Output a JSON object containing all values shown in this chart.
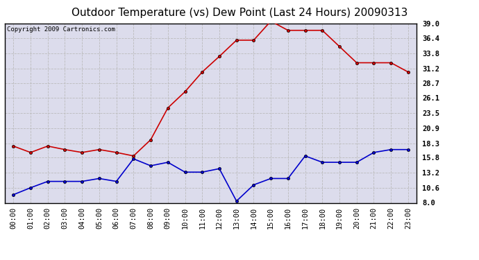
{
  "title": "Outdoor Temperature (vs) Dew Point (Last 24 Hours) 20090313",
  "copyright": "Copyright 2009 Cartronics.com",
  "hours": [
    "00:00",
    "01:00",
    "02:00",
    "03:00",
    "04:00",
    "05:00",
    "06:00",
    "07:00",
    "08:00",
    "09:00",
    "10:00",
    "11:00",
    "12:00",
    "13:00",
    "14:00",
    "15:00",
    "16:00",
    "17:00",
    "18:00",
    "19:00",
    "20:00",
    "21:00",
    "22:00",
    "23:00"
  ],
  "temp_red": [
    17.8,
    16.7,
    17.8,
    17.2,
    16.7,
    17.2,
    16.7,
    16.1,
    18.9,
    24.4,
    27.2,
    30.6,
    33.3,
    36.1,
    36.1,
    39.4,
    37.8,
    37.8,
    37.8,
    35.0,
    32.2,
    32.2,
    32.2,
    30.6
  ],
  "dew_blue": [
    9.4,
    10.6,
    11.7,
    11.7,
    11.7,
    12.2,
    11.7,
    15.6,
    14.4,
    15.0,
    13.3,
    13.3,
    13.9,
    8.3,
    11.1,
    12.2,
    12.2,
    16.1,
    15.0,
    15.0,
    15.0,
    16.7,
    17.2,
    17.2
  ],
  "ylim": [
    8.0,
    39.0
  ],
  "yticks": [
    8.0,
    10.6,
    13.2,
    15.8,
    18.3,
    20.9,
    23.5,
    26.1,
    28.7,
    31.2,
    33.8,
    36.4,
    39.0
  ],
  "line_color_red": "#cc0000",
  "line_color_blue": "#0000cc",
  "bg_color": "#dcdcec",
  "grid_color": "#bbbbbb",
  "title_fontsize": 11,
  "copyright_fontsize": 6.5,
  "tick_fontsize": 7.5,
  "ytick_fontsize": 7.5
}
